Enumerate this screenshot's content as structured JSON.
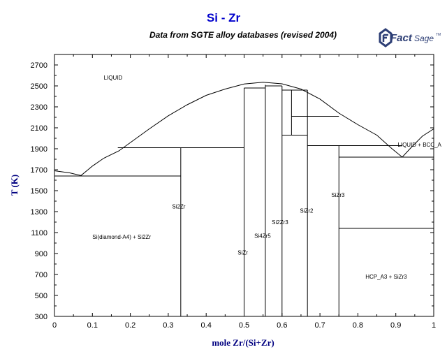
{
  "header": {
    "title": "Si - Zr",
    "subtitle": "Data from SGTE alloy databases (revised 2004)",
    "logo_text_1": "Fact",
    "logo_text_2": "Sage",
    "logo_tm": "TM"
  },
  "colors": {
    "title": "#0000cc",
    "logo": "#2d3e75",
    "axis_label": "#000080",
    "lines": "#000000"
  },
  "chart_data": {
    "type": "phase-diagram",
    "xlabel": "mole Zr/(Si+Zr)",
    "ylabel": "T (K)",
    "xlim": [
      0,
      1
    ],
    "ylim": [
      300,
      2800
    ],
    "xticks": [
      0,
      0.1,
      0.2,
      0.3,
      0.4,
      0.5,
      0.6,
      0.7,
      0.8,
      0.9,
      1
    ],
    "xtick_labels": [
      "0",
      "0.1",
      "0.2",
      "0.3",
      "0.4",
      "0.5",
      "0.6",
      "0.7",
      "0.8",
      "0.9",
      "1"
    ],
    "yticks": [
      300,
      500,
      700,
      900,
      1100,
      1300,
      1500,
      1700,
      1900,
      2100,
      2300,
      2500,
      2700
    ],
    "ytick_labels": [
      "300",
      "500",
      "700",
      "900",
      "1100",
      "1300",
      "1500",
      "1700",
      "1900",
      "2100",
      "2300",
      "2500",
      "2700"
    ],
    "liquidus": [
      [
        0,
        1690
      ],
      [
        0.04,
        1670
      ],
      [
        0.07,
        1645
      ],
      [
        0.1,
        1735
      ],
      [
        0.13,
        1810
      ],
      [
        0.17,
        1880
      ],
      [
        0.25,
        2090
      ],
      [
        0.3,
        2215
      ],
      [
        0.35,
        2320
      ],
      [
        0.4,
        2410
      ],
      [
        0.45,
        2470
      ],
      [
        0.5,
        2518
      ],
      [
        0.55,
        2535
      ],
      [
        0.6,
        2520
      ],
      [
        0.65,
        2470
      ],
      [
        0.7,
        2375
      ],
      [
        0.75,
        2240
      ],
      [
        0.8,
        2130
      ],
      [
        0.85,
        2030
      ],
      [
        0.89,
        1900
      ],
      [
        0.917,
        1820
      ],
      [
        0.94,
        1910
      ],
      [
        0.97,
        2020
      ],
      [
        1.0,
        2090
      ]
    ],
    "invariant_lines": [
      {
        "x": [
          0,
          0.333
        ],
        "y": 1640
      },
      {
        "x": [
          0.167,
          0.5
        ],
        "y": 1910
      },
      {
        "x": [
          0.5,
          0.556
        ],
        "y": 2480
      },
      {
        "x": [
          0.556,
          0.6
        ],
        "y": 2500
      },
      {
        "x": [
          0.6,
          0.667
        ],
        "y": 2460
      },
      {
        "x": [
          0.625,
          0.75
        ],
        "y": 2210
      },
      {
        "x": [
          0.6,
          0.667
        ],
        "y": 2030
      },
      {
        "x": [
          0.667,
          0.917
        ],
        "y": 1930
      },
      {
        "x": [
          0.75,
          1.0
        ],
        "y": 1820
      },
      {
        "x": [
          0.75,
          1.0
        ],
        "y": 1140
      }
    ],
    "compound_lines": [
      {
        "x": 0.333,
        "y": [
          300,
          1910
        ]
      },
      {
        "x": 0.5,
        "y": [
          300,
          2480
        ]
      },
      {
        "x": 0.556,
        "y": [
          300,
          2510
        ]
      },
      {
        "x": 0.6,
        "y": [
          300,
          2500
        ]
      },
      {
        "x": 0.625,
        "y": [
          2030,
          2460
        ]
      },
      {
        "x": 0.667,
        "y": [
          300,
          2460
        ]
      },
      {
        "x": 0.75,
        "y": [
          300,
          1930
        ]
      }
    ],
    "annotations": [
      {
        "text": "LIQUID",
        "x": 0.13,
        "y": 2560
      },
      {
        "text": "LIQUID + BCC_A",
        "x": 0.905,
        "y": 1920
      },
      {
        "text": "Si2Zr",
        "x": 0.31,
        "y": 1330
      },
      {
        "text": "Si(diamond-A4) + Si2Zr",
        "x": 0.1,
        "y": 1040
      },
      {
        "text": "SiZr",
        "x": 0.483,
        "y": 890
      },
      {
        "text": "Si4Zr5",
        "x": 0.527,
        "y": 1050
      },
      {
        "text": "Si2Zr3",
        "x": 0.573,
        "y": 1180
      },
      {
        "text": "SiZr2",
        "x": 0.647,
        "y": 1290
      },
      {
        "text": "SiZr3",
        "x": 0.73,
        "y": 1440
      },
      {
        "text": "HCP_A3 + SiZr3",
        "x": 0.82,
        "y": 660
      }
    ]
  }
}
